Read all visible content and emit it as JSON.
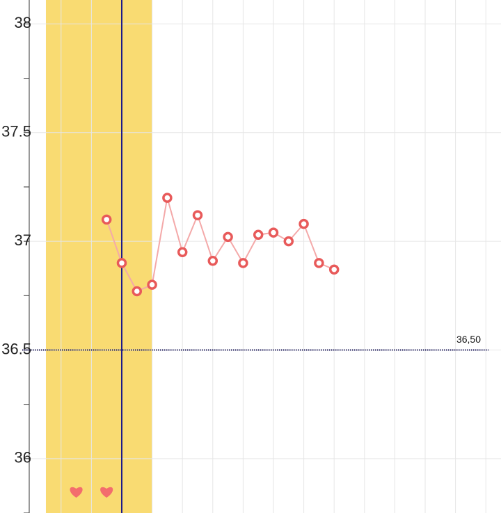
{
  "chart_data": {
    "type": "line",
    "x": [
      4,
      5,
      6,
      7,
      8,
      9,
      10,
      11,
      12,
      13,
      14,
      15,
      16,
      17,
      18,
      19
    ],
    "values": [
      37.1,
      36.9,
      36.77,
      36.8,
      37.2,
      36.95,
      37.12,
      36.91,
      37.02,
      36.9,
      37.03,
      37.04,
      37.0,
      37.08,
      36.9,
      36.87
    ],
    "color": "#e85a5a",
    "line_color": "#f4a9a9",
    "xlim": [
      -1.1,
      30
    ],
    "ylim": [
      35.75,
      38.11
    ],
    "yticks": [
      36,
      36.5,
      37,
      37.5,
      38
    ],
    "minor_yticks": [
      35.75,
      36.25,
      36.75,
      37.25,
      37.75
    ],
    "xgrid": [
      1,
      3,
      5,
      7,
      9,
      11,
      13,
      15,
      17,
      19,
      21,
      23,
      25,
      27,
      29
    ],
    "grid": true,
    "highlight_band": [
      0,
      7
    ],
    "highlight_color": "#f9db72",
    "marker_line": 5,
    "marker_line_color": "#1c1a8a",
    "heart_days": [
      2,
      4
    ],
    "heart_color": "#f36d6d",
    "reference_line": {
      "value": 36.5,
      "label": "36,50"
    }
  }
}
